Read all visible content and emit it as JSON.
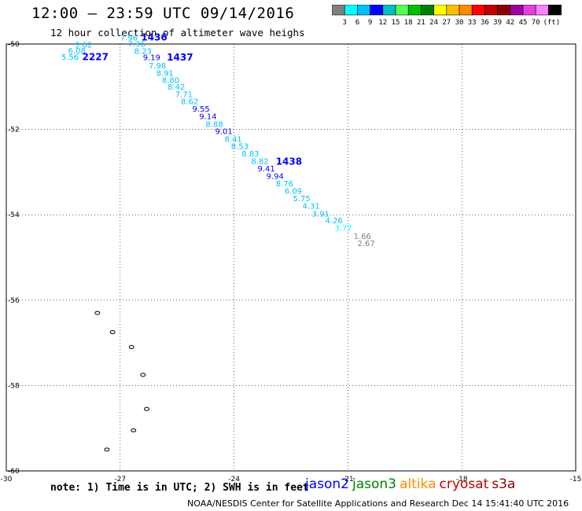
{
  "header": {
    "title": "12:00 – 23:59 UTC 09/14/2016",
    "subtitle": "12 hour collection of altimeter wave heighs"
  },
  "colorbar": {
    "colors": [
      "#7f7f7f",
      "#00ffff",
      "#00bfff",
      "#0000ff",
      "#00bfbf",
      "#55ff55",
      "#00c000",
      "#008000",
      "#ffff00",
      "#ffc000",
      "#ff8c00",
      "#ff0000",
      "#c00000",
      "#8b0000",
      "#a000a0",
      "#e040e0",
      "#ff80ff",
      "#000000"
    ],
    "labels": [
      "3",
      "6",
      "9",
      "12",
      "15",
      "18",
      "21",
      "24",
      "27",
      "30",
      "33",
      "36",
      "39",
      "42",
      "45",
      "70"
    ],
    "unit": "(ft)"
  },
  "chart_data": {
    "type": "scatter",
    "title": "12:00 – 23:59 UTC 09/14/2016",
    "subtitle": "12 hour collection of altimeter wave heighs",
    "xlabel": "",
    "ylabel": "",
    "xlim": [
      -30,
      -15
    ],
    "ylim": [
      -60,
      -50
    ],
    "x_ticks": [
      "-30",
      "-27",
      "-24",
      "-21",
      "-18",
      "-15"
    ],
    "y_ticks": [
      "-50",
      "-52",
      "-54",
      "-56",
      "-58",
      "-60"
    ],
    "grid": "dotted",
    "points": [
      {
        "lon": -28.2,
        "lat": -50.08,
        "swh": "3.62",
        "color": "#00bfff"
      },
      {
        "lon": -28.37,
        "lat": -50.22,
        "swh": "6.08",
        "color": "#00bfff"
      },
      {
        "lon": -28.55,
        "lat": -50.37,
        "swh": "5.56",
        "color": "#00bfff"
      },
      {
        "lon": -27.0,
        "lat": -49.92,
        "swh": "7.96",
        "color": "#00bfff"
      },
      {
        "lon": -26.8,
        "lat": -50.06,
        "swh": "7.36",
        "color": "#00bfff"
      },
      {
        "lon": -26.63,
        "lat": -50.23,
        "swh": "8.23",
        "color": "#00bfff"
      },
      {
        "lon": -26.4,
        "lat": -50.38,
        "swh": "9.19",
        "color": "#0000ff"
      },
      {
        "lon": -26.25,
        "lat": -50.57,
        "swh": "7.98",
        "color": "#00bfff"
      },
      {
        "lon": -26.05,
        "lat": -50.75,
        "swh": "8.91",
        "color": "#00bfff"
      },
      {
        "lon": -25.9,
        "lat": -50.91,
        "swh": "8.80",
        "color": "#00bfff"
      },
      {
        "lon": -25.75,
        "lat": -51.07,
        "swh": "8.42",
        "color": "#00bfff"
      },
      {
        "lon": -25.55,
        "lat": -51.24,
        "swh": "7.71",
        "color": "#00bfff"
      },
      {
        "lon": -25.4,
        "lat": -51.41,
        "swh": "8.62",
        "color": "#00bfff"
      },
      {
        "lon": -25.1,
        "lat": -51.58,
        "swh": "9.55",
        "color": "#0000ff"
      },
      {
        "lon": -24.92,
        "lat": -51.76,
        "swh": "9.14",
        "color": "#0000ff"
      },
      {
        "lon": -24.75,
        "lat": -51.94,
        "swh": "8.88",
        "color": "#00bfff"
      },
      {
        "lon": -24.5,
        "lat": -52.11,
        "swh": "9.01",
        "color": "#0000ff"
      },
      {
        "lon": -24.25,
        "lat": -52.29,
        "swh": "8.41",
        "color": "#00bfff"
      },
      {
        "lon": -24.08,
        "lat": -52.46,
        "swh": "8.53",
        "color": "#00bfff"
      },
      {
        "lon": -23.8,
        "lat": -52.63,
        "swh": "8.83",
        "color": "#00bfff"
      },
      {
        "lon": -23.55,
        "lat": -52.81,
        "swh": "8.82",
        "color": "#00bfff"
      },
      {
        "lon": -23.38,
        "lat": -52.98,
        "swh": "9.41",
        "color": "#0000ff"
      },
      {
        "lon": -23.15,
        "lat": -53.16,
        "swh": "9.94",
        "color": "#0000ff"
      },
      {
        "lon": -22.9,
        "lat": -53.33,
        "swh": "8.76",
        "color": "#00bfff"
      },
      {
        "lon": -22.67,
        "lat": -53.51,
        "swh": "6.09",
        "color": "#00bfff"
      },
      {
        "lon": -22.45,
        "lat": -53.68,
        "swh": "5.75",
        "color": "#00bfff"
      },
      {
        "lon": -22.2,
        "lat": -53.86,
        "swh": "4.31",
        "color": "#00bfff"
      },
      {
        "lon": -21.95,
        "lat": -54.04,
        "swh": "3.91",
        "color": "#00bfff"
      },
      {
        "lon": -21.6,
        "lat": -54.2,
        "swh": "4.26",
        "color": "#00bfff"
      },
      {
        "lon": -21.35,
        "lat": -54.37,
        "swh": "3.77",
        "color": "#00ffff"
      },
      {
        "lon": -20.85,
        "lat": -54.57,
        "swh": "1.66",
        "color": "#7f7f7f"
      },
      {
        "lon": -20.75,
        "lat": -54.73,
        "swh": "2.67",
        "color": "#7f7f7f"
      }
    ],
    "pass_labels": [
      {
        "lon": -28.0,
        "lat": -50.38,
        "text": "2227",
        "color": "#0000ff"
      },
      {
        "lon": -26.45,
        "lat": -49.92,
        "text": "1436",
        "color": "#0000ff"
      },
      {
        "lon": -25.77,
        "lat": -50.39,
        "text": "1437",
        "color": "#0000ff"
      },
      {
        "lon": -22.9,
        "lat": -52.83,
        "text": "1438",
        "color": "#0000ff"
      }
    ],
    "islands": [
      {
        "lon": -27.6,
        "lat": -56.3
      },
      {
        "lon": -27.2,
        "lat": -56.75
      },
      {
        "lon": -26.7,
        "lat": -57.1
      },
      {
        "lon": -26.4,
        "lat": -57.75
      },
      {
        "lon": -26.3,
        "lat": -58.55
      },
      {
        "lon": -26.65,
        "lat": -59.05
      },
      {
        "lon": -27.35,
        "lat": -59.5
      }
    ]
  },
  "note": "note: 1) Time is in UTC; 2) SWH is in feet",
  "satellites": [
    {
      "name": "jason2",
      "color": "#0000ff"
    },
    {
      "name": "jason3",
      "color": "#008000"
    },
    {
      "name": "altika",
      "color": "#ff8c00"
    },
    {
      "name": "cryosat",
      "color": "#c00000"
    },
    {
      "name": "s3a",
      "color": "#8b0000"
    }
  ],
  "footer": "NOAA/NESDIS Center for Satellite Applications and Research    Dec 14 15:41:40 UTC 2016"
}
